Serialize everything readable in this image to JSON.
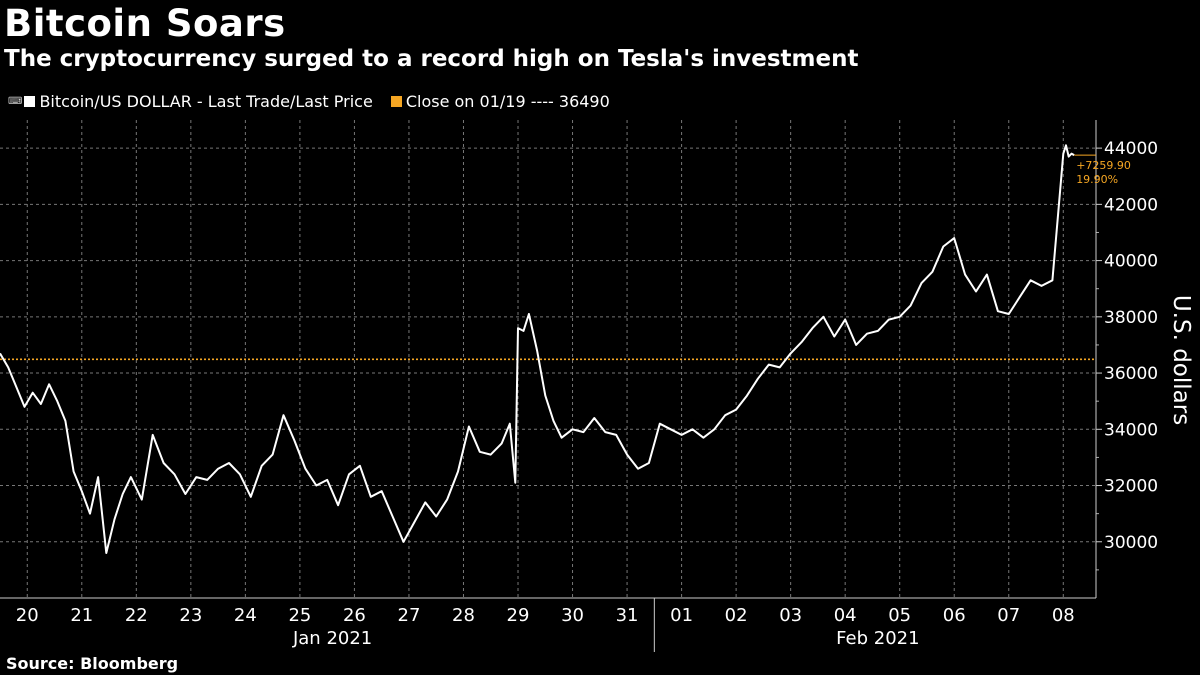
{
  "header": {
    "title": "Bitcoin Soars",
    "subtitle": "The cryptocurrency surged to a record high on Tesla's investment"
  },
  "legend": {
    "series_label": "Bitcoin/US DOLLAR - Last Trade/Last Price",
    "reference_label": "Close on 01/19 ---- 36490",
    "series_color": "#ffffff",
    "reference_color": "#f5a623"
  },
  "footer": {
    "source": "Source: Bloomberg"
  },
  "annotation": {
    "change_abs": "+7259.90",
    "change_pct": "19.90%"
  },
  "chart_data": {
    "type": "line",
    "ylabel": "U.S. dollars",
    "ylim": [
      28000,
      45000
    ],
    "yticks": [
      30000,
      32000,
      34000,
      36000,
      38000,
      40000,
      42000,
      44000
    ],
    "xlim": [
      -0.5,
      19.6
    ],
    "xticks": [
      {
        "pos": 0,
        "label": "20"
      },
      {
        "pos": 1,
        "label": "21"
      },
      {
        "pos": 2,
        "label": "22"
      },
      {
        "pos": 3,
        "label": "23"
      },
      {
        "pos": 4,
        "label": "24"
      },
      {
        "pos": 5,
        "label": "25"
      },
      {
        "pos": 6,
        "label": "26"
      },
      {
        "pos": 7,
        "label": "27"
      },
      {
        "pos": 8,
        "label": "28"
      },
      {
        "pos": 9,
        "label": "29"
      },
      {
        "pos": 10,
        "label": "30"
      },
      {
        "pos": 11,
        "label": "31"
      },
      {
        "pos": 12,
        "label": "01"
      },
      {
        "pos": 13,
        "label": "02"
      },
      {
        "pos": 14,
        "label": "03"
      },
      {
        "pos": 15,
        "label": "04"
      },
      {
        "pos": 16,
        "label": "05"
      },
      {
        "pos": 17,
        "label": "06"
      },
      {
        "pos": 18,
        "label": "07"
      },
      {
        "pos": 19,
        "label": "08"
      }
    ],
    "month_labels": [
      {
        "label": "Jan 2021",
        "pos": 5.6
      },
      {
        "label": "Feb 2021",
        "pos": 15.6
      }
    ],
    "month_divider": 11.5,
    "reference_line": 36490,
    "series": [
      {
        "name": "Bitcoin/US DOLLAR - Last Trade/Last Price",
        "x": [
          -0.5,
          -0.35,
          -0.2,
          -0.05,
          0.1,
          0.25,
          0.4,
          0.55,
          0.7,
          0.85,
          1.0,
          1.15,
          1.3,
          1.45,
          1.6,
          1.75,
          1.9,
          2.1,
          2.3,
          2.5,
          2.7,
          2.9,
          3.1,
          3.3,
          3.5,
          3.7,
          3.9,
          4.1,
          4.3,
          4.5,
          4.7,
          4.9,
          5.1,
          5.3,
          5.5,
          5.7,
          5.9,
          6.1,
          6.3,
          6.5,
          6.7,
          6.9,
          7.1,
          7.3,
          7.5,
          7.7,
          7.9,
          8.1,
          8.3,
          8.5,
          8.7,
          8.85,
          8.95,
          9.0,
          9.1,
          9.2,
          9.35,
          9.5,
          9.65,
          9.8,
          10.0,
          10.2,
          10.4,
          10.6,
          10.8,
          11.0,
          11.2,
          11.4,
          11.6,
          11.8,
          12.0,
          12.2,
          12.4,
          12.6,
          12.8,
          13.0,
          13.2,
          13.4,
          13.6,
          13.8,
          14.0,
          14.2,
          14.4,
          14.6,
          14.8,
          15.0,
          15.2,
          15.4,
          15.6,
          15.8,
          16.0,
          16.2,
          16.4,
          16.6,
          16.8,
          17.0,
          17.2,
          17.4,
          17.6,
          17.8,
          18.0,
          18.2,
          18.4,
          18.6,
          18.8,
          19.0,
          19.05,
          19.1,
          19.15,
          19.2
        ],
        "values": [
          36700,
          36200,
          35500,
          34800,
          35300,
          34900,
          35600,
          35000,
          34300,
          32500,
          31800,
          31000,
          32300,
          29600,
          30800,
          31700,
          32300,
          31500,
          33800,
          32800,
          32400,
          31700,
          32300,
          32200,
          32600,
          32800,
          32400,
          31600,
          32700,
          33100,
          34500,
          33600,
          32600,
          32000,
          32200,
          31300,
          32400,
          32700,
          31600,
          31800,
          30900,
          30000,
          30700,
          31400,
          30900,
          31500,
          32500,
          34100,
          33200,
          33100,
          33500,
          34200,
          32100,
          37600,
          37500,
          38100,
          36800,
          35200,
          34300,
          33700,
          34000,
          33900,
          34400,
          33900,
          33800,
          33100,
          32600,
          32800,
          34200,
          34000,
          33800,
          34000,
          33700,
          34000,
          34500,
          34700,
          35200,
          35800,
          36300,
          36200,
          36700,
          37100,
          37600,
          38000,
          37300,
          37900,
          37000,
          37400,
          37500,
          37900,
          38000,
          38400,
          39200,
          39600,
          40500,
          40800,
          39500,
          38900,
          39500,
          38200,
          38100,
          38700,
          39300,
          39100,
          39300,
          43800,
          44100,
          43700,
          43800,
          43750
        ]
      }
    ]
  }
}
